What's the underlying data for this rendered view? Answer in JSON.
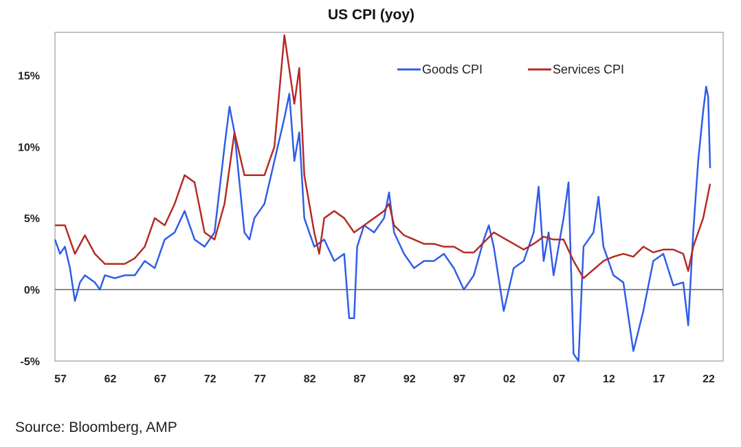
{
  "chart_data": {
    "type": "line",
    "title": "US CPI (yoy)",
    "xlabel": "",
    "ylabel": "",
    "ylim": [
      -5,
      18
    ],
    "xlim": [
      1957,
      2024
    ],
    "grid": false,
    "legend_position": "top-right",
    "y_ticks": [
      {
        "value": -5,
        "label": "-5%"
      },
      {
        "value": 0,
        "label": "0%"
      },
      {
        "value": 5,
        "label": "5%"
      },
      {
        "value": 10,
        "label": "10%"
      },
      {
        "value": 15,
        "label": "15%"
      }
    ],
    "x_ticks": [
      {
        "value": 1957,
        "label": "57"
      },
      {
        "value": 1962,
        "label": "62"
      },
      {
        "value": 1967,
        "label": "67"
      },
      {
        "value": 1972,
        "label": "72"
      },
      {
        "value": 1977,
        "label": "77"
      },
      {
        "value": 1982,
        "label": "82"
      },
      {
        "value": 1987,
        "label": "87"
      },
      {
        "value": 1992,
        "label": "92"
      },
      {
        "value": 1997,
        "label": "97"
      },
      {
        "value": 2002,
        "label": "02"
      },
      {
        "value": 2007,
        "label": "07"
      },
      {
        "value": 2012,
        "label": "12"
      },
      {
        "value": 2017,
        "label": "17"
      },
      {
        "value": 2022,
        "label": "22"
      }
    ],
    "series": [
      {
        "name": "Goods CPI",
        "color": "#2f5de8",
        "x": [
          1957,
          1957.5,
          1958,
          1958.5,
          1959,
          1959.5,
          1960,
          1961,
          1961.5,
          1962,
          1963,
          1964,
          1965,
          1966,
          1967,
          1968,
          1969,
          1970,
          1971,
          1972,
          1973,
          1974,
          1974.5,
          1975,
          1976,
          1976.5,
          1977,
          1978,
          1979,
          1980,
          1980.5,
          1981,
          1981.5,
          1982,
          1983,
          1984,
          1985,
          1986,
          1986.5,
          1987,
          1987.3,
          1988,
          1989,
          1990,
          1990.5,
          1991,
          1992,
          1993,
          1994,
          1995,
          1996,
          1997,
          1998,
          1999,
          2000,
          2000.5,
          2001,
          2002,
          2003,
          2004,
          2005,
          2005.5,
          2006,
          2006.5,
          2007,
          2007.5,
          2008,
          2008.5,
          2009,
          2009.5,
          2010,
          2011,
          2011.5,
          2012,
          2013,
          2014,
          2015,
          2016,
          2017,
          2018,
          2019,
          2020,
          2020.5,
          2021,
          2021.5,
          2022,
          2022.3,
          2022.5,
          2022.7
        ],
        "values": [
          3.5,
          2.5,
          3,
          1.5,
          -0.8,
          0.5,
          1,
          0.5,
          0,
          1,
          0.8,
          1,
          1,
          2,
          1.5,
          3.5,
          4,
          5.5,
          3.5,
          3,
          4,
          10,
          12.8,
          11,
          4,
          3.5,
          5,
          6,
          9,
          12,
          13.7,
          9,
          11,
          5,
          3,
          3.5,
          2,
          2.5,
          -2,
          -2,
          3,
          4.5,
          4,
          5,
          6.8,
          4,
          2.5,
          1.5,
          2,
          2,
          2.5,
          1.5,
          0,
          1,
          3.5,
          4.5,
          3,
          -1.5,
          1.5,
          2,
          4,
          7.2,
          2,
          4,
          1,
          3,
          5,
          7.5,
          -4.5,
          -5,
          3,
          4,
          6.5,
          3,
          1,
          0.5,
          -4.3,
          -1.5,
          2,
          2.5,
          0.3,
          0.5,
          -2.5,
          4,
          9,
          12.5,
          14.2,
          13.5,
          8.5
        ]
      },
      {
        "name": "Services CPI",
        "color": "#b52a25",
        "x": [
          1957,
          1958,
          1959,
          1960,
          1961,
          1962,
          1963,
          1964,
          1965,
          1966,
          1967,
          1968,
          1969,
          1970,
          1971,
          1972,
          1973,
          1974,
          1975,
          1976,
          1977,
          1978,
          1979,
          1980,
          1981,
          1981.5,
          1982,
          1983,
          1983.5,
          1984,
          1985,
          1986,
          1987,
          1988,
          1989,
          1990,
          1990.5,
          1991,
          1992,
          1993,
          1994,
          1995,
          1996,
          1997,
          1998,
          1999,
          2000,
          2001,
          2002,
          2003,
          2004,
          2005,
          2006,
          2007,
          2008,
          2009,
          2010,
          2011,
          2012,
          2013,
          2014,
          2015,
          2016,
          2017,
          2018,
          2019,
          2020,
          2020.5,
          2021,
          2022,
          2022.7
        ],
        "values": [
          4.5,
          4.5,
          2.5,
          3.8,
          2.5,
          1.8,
          1.8,
          1.8,
          2.2,
          3,
          5,
          4.5,
          6,
          8,
          7.5,
          4,
          3.5,
          6,
          11,
          8,
          8,
          8,
          10,
          17.8,
          13,
          15.5,
          8,
          4,
          2.5,
          5,
          5.5,
          5,
          4,
          4.5,
          5,
          5.5,
          6,
          4.5,
          3.8,
          3.5,
          3.2,
          3.2,
          3,
          3,
          2.6,
          2.6,
          3.3,
          4,
          3.6,
          3.2,
          2.8,
          3.2,
          3.7,
          3.5,
          3.5,
          2,
          0.8,
          1.4,
          2,
          2.3,
          2.5,
          2.3,
          3,
          2.6,
          2.8,
          2.8,
          2.5,
          1.3,
          3,
          5,
          7.4
        ]
      }
    ]
  },
  "source": "Source: Bloomberg, AMP"
}
